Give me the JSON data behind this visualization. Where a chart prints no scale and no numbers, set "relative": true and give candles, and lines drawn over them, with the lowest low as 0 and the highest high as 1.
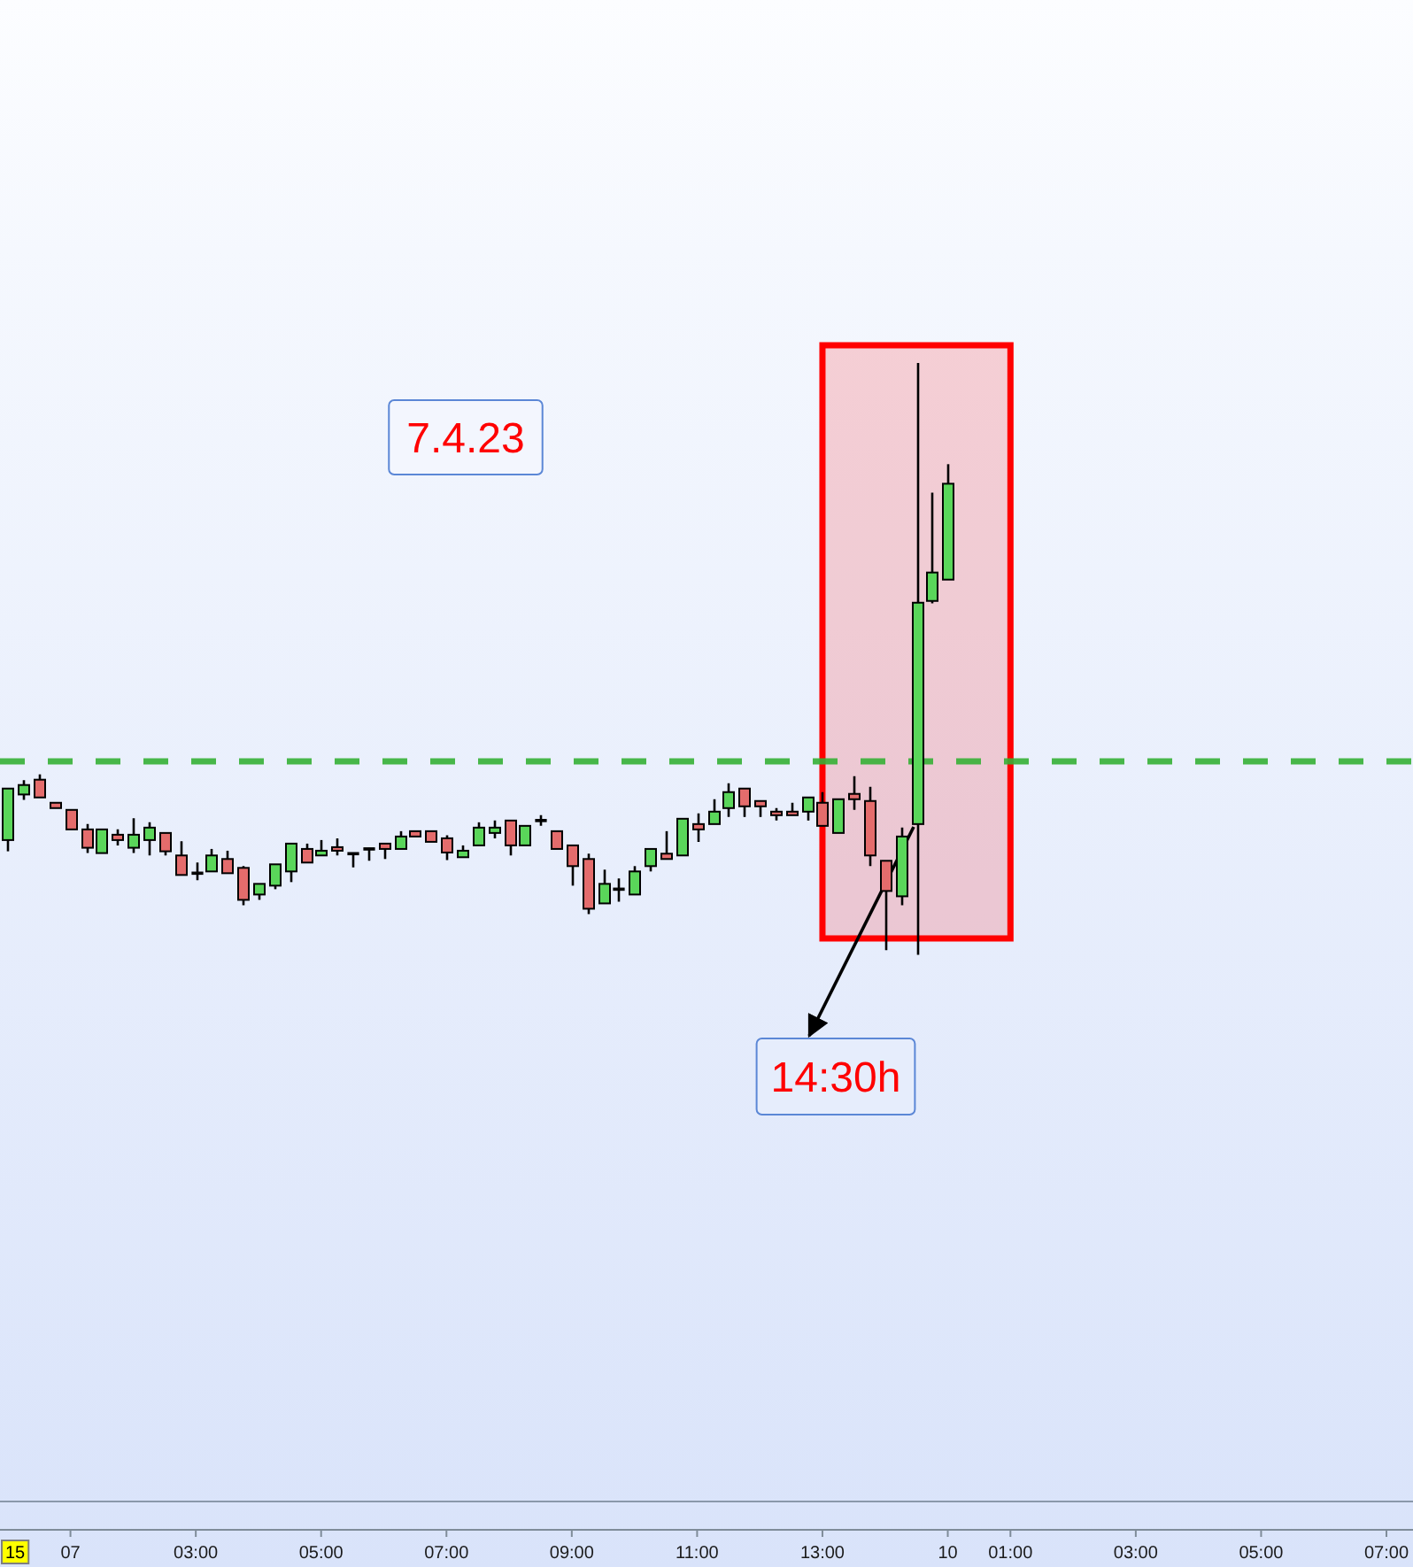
{
  "chart_data": {
    "type": "candlestick",
    "relative": true,
    "categories": [
      null,
      null,
      null,
      null,
      "07",
      null,
      null,
      null,
      null,
      null,
      null,
      null,
      "03:00",
      null,
      null,
      null,
      null,
      null,
      null,
      null,
      "05:00",
      null,
      null,
      null,
      null,
      null,
      null,
      null,
      "07:00",
      null,
      null,
      null,
      null,
      null,
      null,
      null,
      "09:00",
      null,
      null,
      null,
      null,
      null,
      null,
      null,
      "11:00",
      null,
      null,
      null,
      null,
      null,
      null,
      null,
      "13:00",
      null,
      null,
      null,
      null,
      null,
      null,
      null,
      "10",
      null,
      null,
      null,
      "01:00",
      null,
      null,
      null,
      null,
      null,
      null,
      null,
      "03:00",
      null,
      null,
      null,
      null,
      null,
      null,
      null,
      "05:00",
      null,
      null,
      null,
      null,
      null,
      null,
      null,
      "07:00"
    ],
    "ohlc": [
      [
        0.194,
        0.281,
        0.175,
        0.281
      ],
      [
        0.271,
        0.295,
        0.262,
        0.287
      ],
      [
        0.296,
        0.305,
        0.266,
        0.266
      ],
      [
        0.257,
        0.257,
        0.248,
        0.248
      ],
      [
        0.245,
        0.245,
        0.212,
        0.212
      ],
      [
        0.212,
        0.221,
        0.172,
        0.181
      ],
      [
        0.172,
        0.212,
        0.172,
        0.212
      ],
      [
        0.203,
        0.212,
        0.185,
        0.194
      ],
      [
        0.181,
        0.231,
        0.172,
        0.203
      ],
      [
        0.194,
        0.224,
        0.168,
        0.215
      ],
      [
        0.206,
        0.206,
        0.168,
        0.175
      ],
      [
        0.168,
        0.192,
        0.135,
        0.135
      ],
      [
        0.138,
        0.156,
        0.126,
        0.138
      ],
      [
        0.141,
        0.179,
        0.141,
        0.168
      ],
      [
        0.162,
        0.176,
        0.138,
        0.138
      ],
      [
        0.147,
        0.15,
        0.084,
        0.093
      ],
      [
        0.102,
        0.12,
        0.093,
        0.12
      ],
      [
        0.117,
        0.153,
        0.111,
        0.153
      ],
      [
        0.141,
        0.188,
        0.123,
        0.188
      ],
      [
        0.179,
        0.188,
        0.156,
        0.156
      ],
      [
        0.168,
        0.194,
        0.168,
        0.176
      ],
      [
        0.182,
        0.197,
        0.168,
        0.176
      ],
      [
        0.171,
        0.171,
        0.148,
        0.171
      ],
      [
        0.179,
        0.179,
        0.159,
        0.179
      ],
      [
        0.188,
        0.188,
        0.162,
        0.179
      ],
      [
        0.179,
        0.209,
        0.179,
        0.2
      ],
      [
        0.209,
        0.209,
        0.2,
        0.2
      ],
      [
        0.209,
        0.209,
        0.191,
        0.191
      ],
      [
        0.197,
        0.202,
        0.16,
        0.173
      ],
      [
        0.165,
        0.185,
        0.165,
        0.176
      ],
      [
        0.185,
        0.224,
        0.185,
        0.215
      ],
      [
        0.206,
        0.227,
        0.197,
        0.215
      ],
      [
        0.227,
        0.227,
        0.168,
        0.185
      ],
      [
        0.185,
        0.218,
        0.185,
        0.218
      ],
      [
        0.227,
        0.236,
        0.218,
        0.227
      ],
      [
        0.209,
        0.209,
        0.179,
        0.179
      ],
      [
        0.185,
        0.185,
        0.117,
        0.15
      ],
      [
        0.162,
        0.171,
        0.069,
        0.078
      ],
      [
        0.087,
        0.144,
        0.087,
        0.12
      ],
      [
        0.111,
        0.129,
        0.09,
        0.111
      ],
      [
        0.102,
        0.15,
        0.102,
        0.141
      ],
      [
        0.15,
        0.179,
        0.141,
        0.179
      ],
      [
        0.171,
        0.209,
        0.162,
        0.162
      ],
      [
        0.168,
        0.23,
        0.168,
        0.23
      ],
      [
        0.221,
        0.239,
        0.191,
        0.212
      ],
      [
        0.221,
        0.263,
        0.221,
        0.242
      ],
      [
        0.248,
        0.29,
        0.233,
        0.275
      ],
      [
        0.281,
        0.281,
        0.233,
        0.251
      ],
      [
        0.26,
        0.26,
        0.233,
        0.251
      ],
      [
        0.242,
        0.248,
        0.227,
        0.236
      ],
      [
        0.242,
        0.257,
        0.236,
        0.236
      ],
      [
        0.242,
        0.266,
        0.227,
        0.266
      ],
      [
        0.257,
        0.275,
        0.218,
        0.218
      ],
      [
        0.206,
        0.263,
        0.206,
        0.263
      ],
      [
        0.272,
        0.302,
        0.245,
        0.263
      ],
      [
        0.26,
        0.284,
        0.15,
        0.168
      ],
      [
        0.159,
        0.159,
        0.008,
        0.108
      ],
      [
        0.099,
        0.215,
        0.084,
        0.2
      ],
      [
        0.221,
        1,
        0,
        0.595
      ],
      [
        0.598,
        0.781,
        0.594,
        0.646
      ],
      [
        0.634,
        0.829,
        0.634,
        0.796
      ],
      null,
      null,
      null,
      null,
      null,
      null,
      null,
      null,
      null,
      null,
      null,
      null,
      null,
      null,
      null,
      null,
      null,
      null,
      null,
      null,
      null,
      null,
      null,
      null,
      null,
      null,
      null,
      null
    ],
    "colors": [
      "#5ad65a",
      "#5ad65a",
      "#e46c6c",
      "#e46c6c",
      "#e46c6c",
      "#e46c6c",
      "#5ad65a",
      "#e46c6c",
      "#5ad65a",
      "#5ad65a",
      "#e46c6c",
      "#e46c6c",
      "#000000",
      "#5ad65a",
      "#e46c6c",
      "#e46c6c",
      "#5ad65a",
      "#5ad65a",
      "#5ad65a",
      "#e46c6c",
      "#5ad65a",
      "#e46c6c",
      "#000000",
      "#000000",
      "#e46c6c",
      "#5ad65a",
      "#e46c6c",
      "#e46c6c",
      "#e46c6c",
      "#5ad65a",
      "#5ad65a",
      "#5ad65a",
      "#e46c6c",
      "#5ad65a",
      "#000000",
      "#e46c6c",
      "#e46c6c",
      "#e46c6c",
      "#5ad65a",
      "#000000",
      "#5ad65a",
      "#5ad65a",
      "#e46c6c",
      "#5ad65a",
      "#e46c6c",
      "#5ad65a",
      "#5ad65a",
      "#e46c6c",
      "#e46c6c",
      "#e46c6c",
      "#e46c6c",
      "#5ad65a",
      "#e46c6c",
      "#5ad65a",
      "#e46c6c",
      "#e46c6c",
      "#e46c6c",
      "#5ad65a",
      "#5ad65a",
      "#5ad65a",
      "#5ad65a",
      null,
      null,
      null,
      null,
      null,
      null,
      null,
      null,
      null,
      null,
      null,
      null,
      null,
      null,
      null,
      null,
      null,
      null,
      null,
      null,
      null,
      null,
      null,
      null,
      null,
      null,
      null,
      null
    ],
    "ref_lines": [
      {
        "axis": "y",
        "value": 0.327,
        "color": "#35b035",
        "line_style": "dashed"
      }
    ],
    "bands": [
      {
        "axis": "x",
        "from": "13:00",
        "to": "01:00",
        "color": "#ff0000"
      }
    ],
    "annotations": [
      "7.4.23",
      "14:30h",
      "15"
    ]
  }
}
